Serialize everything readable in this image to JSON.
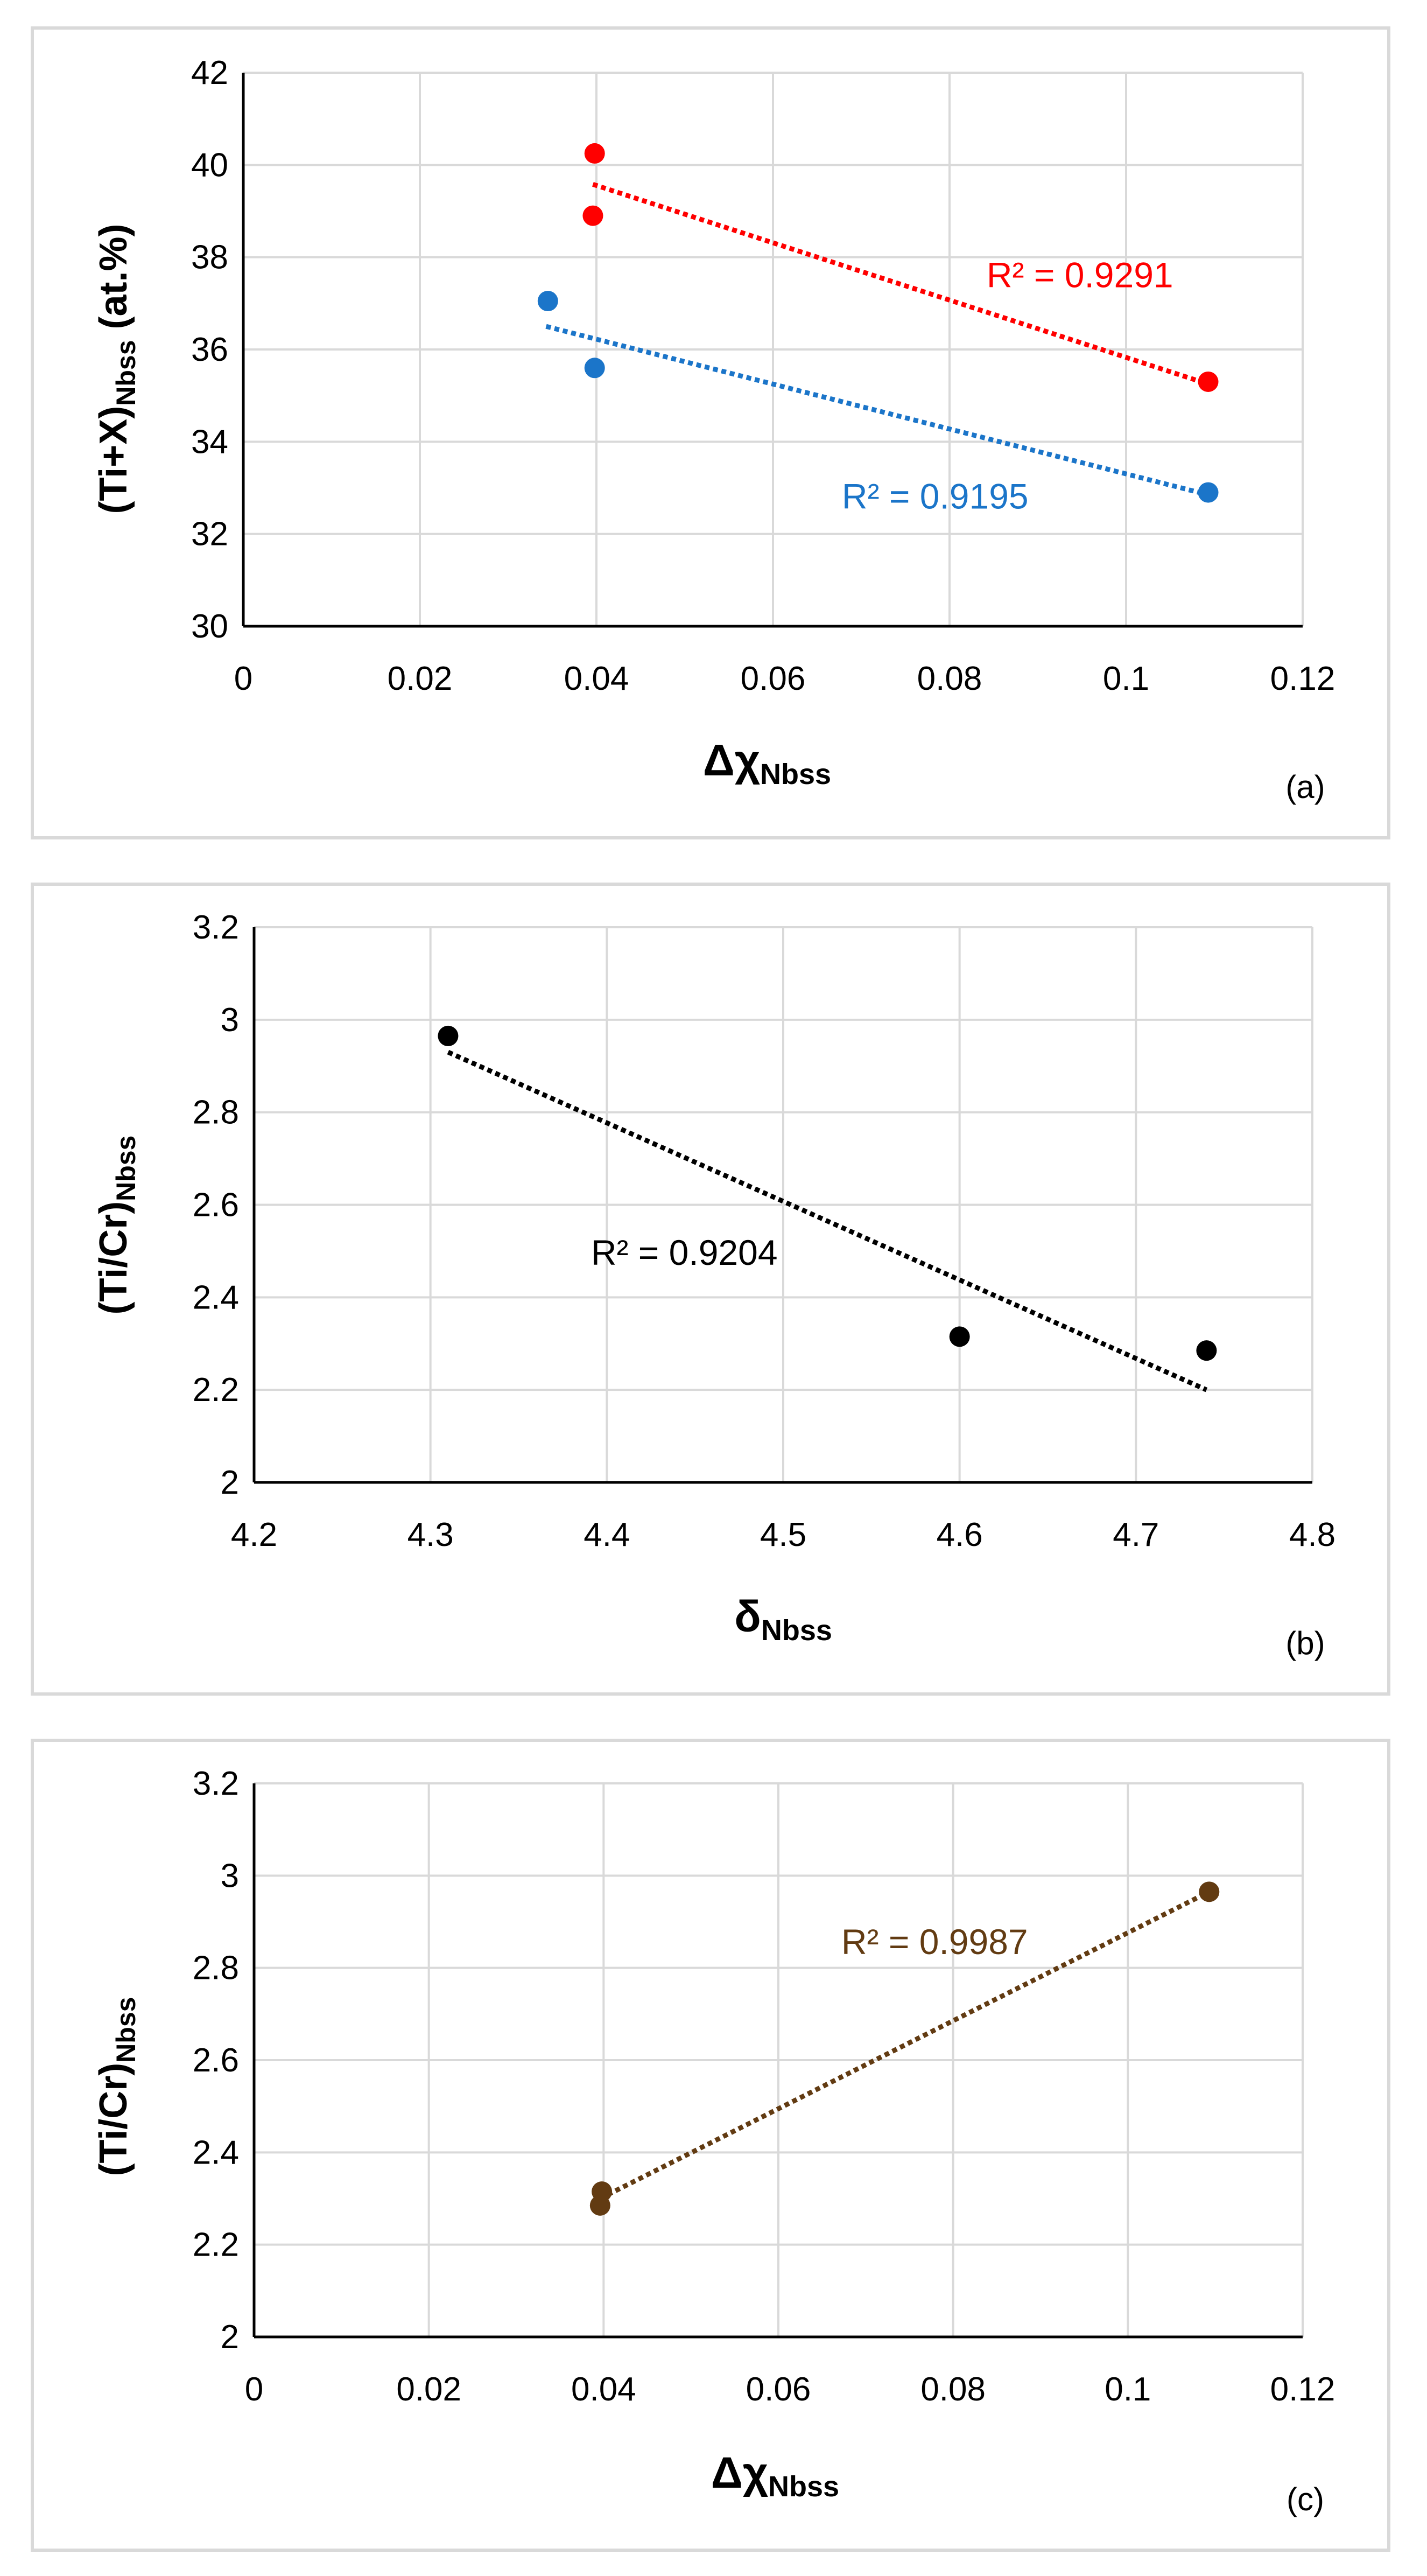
{
  "chart_data": [
    {
      "type": "scatter",
      "panel_label": "(a)",
      "xlabel": "Δχ",
      "xlabel_sub": "Nbss",
      "ylabel": "(Ti+X)",
      "ylabel_sub": "Nbss",
      "ylabel_suffix": " (at.%)",
      "xlim": [
        0,
        0.12
      ],
      "ylim": [
        30,
        42
      ],
      "xticks": [
        0,
        0.02,
        0.04,
        0.06,
        0.08,
        0.1,
        0.12
      ],
      "xtick_labels": [
        "0",
        "0.02",
        "0.04",
        "0.06",
        "0.08",
        "0.1",
        "0.12"
      ],
      "yticks": [
        30,
        32,
        34,
        36,
        38,
        40,
        42
      ],
      "ytick_labels": [
        "30",
        "32",
        "34",
        "36",
        "38",
        "40",
        "42"
      ],
      "grid": true,
      "series": [
        {
          "name": "red",
          "color": "#ff0000",
          "x": [
            0.0398,
            0.0396,
            0.1093
          ],
          "y": [
            40.25,
            38.9,
            35.3
          ],
          "trend_from": [
            0.0396,
            39.58
          ],
          "trend_to": [
            0.1093,
            35.25
          ],
          "r2_text": "R² = 0.9291",
          "r2_anchor": [
            0.0842,
            37.35
          ]
        },
        {
          "name": "blue",
          "color": "#1b75c9",
          "x": [
            0.0345,
            0.0398,
            0.1093
          ],
          "y": [
            37.05,
            35.6,
            32.9
          ],
          "trend_from": [
            0.0343,
            36.5
          ],
          "trend_to": [
            0.1093,
            32.85
          ],
          "r2_text": "R² = 0.9195",
          "r2_anchor": [
            0.0678,
            32.55
          ]
        }
      ]
    },
    {
      "type": "scatter",
      "panel_label": "(b)",
      "xlabel": "δ",
      "xlabel_sub": "Nbss",
      "ylabel": "(Ti/Cr)",
      "ylabel_sub": "Nbss",
      "ylabel_suffix": "",
      "xlim": [
        4.2,
        4.8
      ],
      "ylim": [
        2,
        3.2
      ],
      "xticks": [
        4.2,
        4.3,
        4.4,
        4.5,
        4.6,
        4.7,
        4.8
      ],
      "xtick_labels": [
        "4.2",
        "4.3",
        "4.4",
        "4.5",
        "4.6",
        "4.7",
        "4.8"
      ],
      "yticks": [
        2,
        2.2,
        2.4,
        2.6,
        2.8,
        3,
        3.2
      ],
      "ytick_labels": [
        "2",
        "2.2",
        "2.4",
        "2.6",
        "2.8",
        "3",
        "3.2"
      ],
      "grid": true,
      "series": [
        {
          "name": "black",
          "color": "#000000",
          "x": [
            4.31,
            4.6,
            4.74
          ],
          "y": [
            2.965,
            2.315,
            2.285
          ],
          "trend_from": [
            4.31,
            2.93
          ],
          "trend_to": [
            4.74,
            2.2
          ],
          "r2_text": "R² = 0.9204",
          "r2_anchor": [
            4.391,
            2.47
          ]
        }
      ]
    },
    {
      "type": "scatter",
      "panel_label": "(c)",
      "xlabel": "Δχ",
      "xlabel_sub": "Nbss",
      "ylabel": "(Ti/Cr)",
      "ylabel_sub": "Nbss",
      "ylabel_suffix": "",
      "xlim": [
        0,
        0.12
      ],
      "ylim": [
        2,
        3.2
      ],
      "xticks": [
        0,
        0.02,
        0.04,
        0.06,
        0.08,
        0.1,
        0.12
      ],
      "xtick_labels": [
        "0",
        "0.02",
        "0.04",
        "0.06",
        "0.08",
        "0.1",
        "0.12"
      ],
      "yticks": [
        2,
        2.2,
        2.4,
        2.6,
        2.8,
        3,
        3.2
      ],
      "ytick_labels": [
        "2",
        "2.2",
        "2.4",
        "2.6",
        "2.8",
        "3",
        "3.2"
      ],
      "grid": true,
      "series": [
        {
          "name": "brown",
          "color": "#623b12",
          "x": [
            0.1093,
            0.0398,
            0.0396
          ],
          "y": [
            2.965,
            2.315,
            2.285
          ],
          "trend_from": [
            0.0396,
            2.3
          ],
          "trend_to": [
            0.1093,
            2.965
          ],
          "r2_text": "R² = 0.9987",
          "r2_anchor": [
            0.0672,
            2.83
          ]
        }
      ]
    }
  ]
}
